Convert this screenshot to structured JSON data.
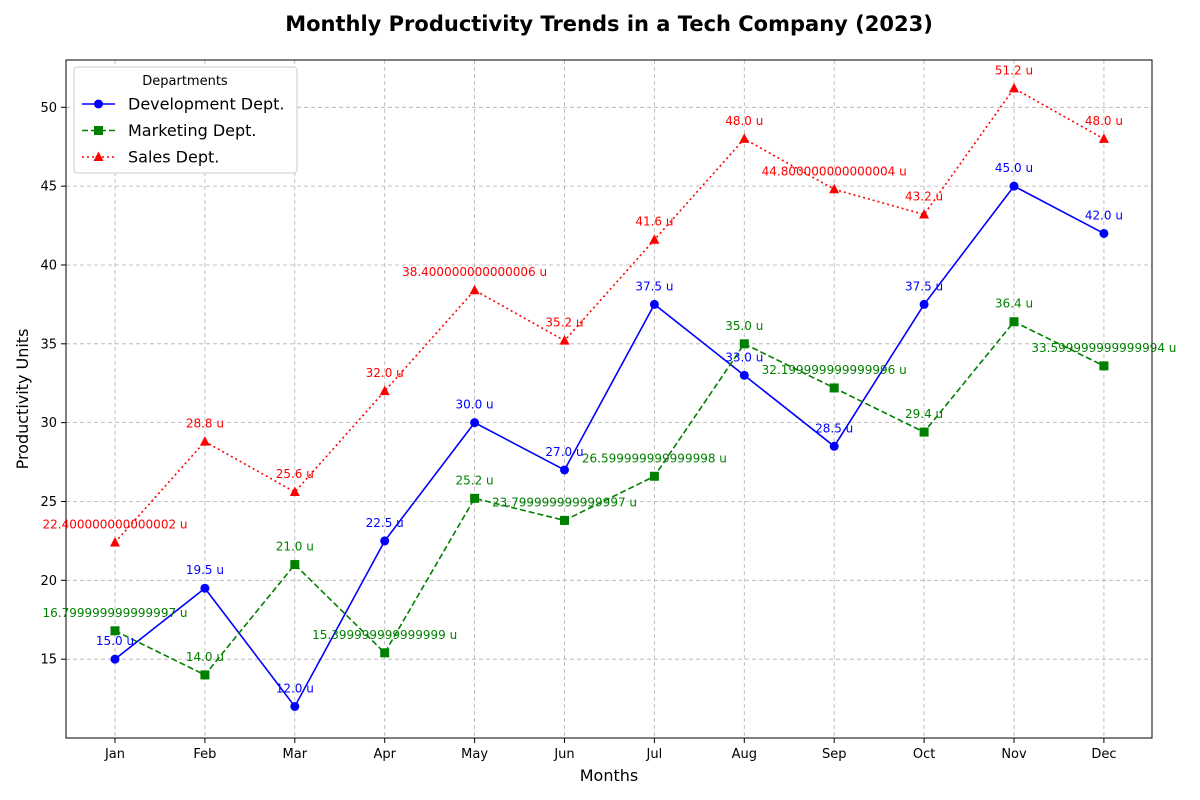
{
  "chart_data": {
    "type": "line",
    "title": "Monthly Productivity Trends in a Tech Company (2023)",
    "xlabel": "Months",
    "ylabel": "Productivity Units",
    "categories": [
      "Jan",
      "Feb",
      "Mar",
      "Apr",
      "May",
      "Jun",
      "Jul",
      "Aug",
      "Sep",
      "Oct",
      "Nov",
      "Dec"
    ],
    "ylim": [
      10,
      53
    ],
    "yticks": [
      15,
      20,
      25,
      30,
      35,
      40,
      45,
      50
    ],
    "grid": true,
    "legend": {
      "title": "Departments",
      "position": "top-left"
    },
    "series": [
      {
        "name": "Development Dept.",
        "color": "#0000ff",
        "line_style": "solid",
        "marker": "circle",
        "values": [
          15.0,
          19.5,
          12.0,
          22.5,
          30.0,
          27.0,
          37.5,
          33.0,
          28.5,
          37.5,
          45.0,
          42.0
        ],
        "labels": [
          "15.0 u",
          "19.5 u",
          "12.0 u",
          "22.5 u",
          "30.0 u",
          "27.0 u",
          "37.5 u",
          "33.0 u",
          "28.5 u",
          "37.5 u",
          "45.0 u",
          "42.0 u"
        ]
      },
      {
        "name": "Marketing Dept.",
        "color": "#008000",
        "line_style": "dashed",
        "marker": "square",
        "values": [
          16.8,
          14.0,
          21.0,
          15.4,
          25.2,
          23.8,
          26.6,
          35.0,
          32.2,
          29.4,
          36.4,
          33.6
        ],
        "labels": [
          "16.799999999999997 u",
          "14.0 u",
          "21.0 u",
          "15.399999999999999 u",
          "25.2 u",
          "23.799999999999997 u",
          "26.599999999999998 u",
          "35.0 u",
          "32.199999999999996 u",
          "29.4 u",
          "36.4 u",
          "33.599999999999994 u"
        ]
      },
      {
        "name": "Sales Dept.",
        "color": "#ff0000",
        "line_style": "dotted",
        "marker": "triangle",
        "values": [
          22.4,
          28.8,
          25.6,
          32.0,
          38.4,
          35.2,
          41.6,
          48.0,
          44.8,
          43.2,
          51.2,
          48.0
        ],
        "labels": [
          "22.400000000000002 u",
          "28.8 u",
          "25.6 u",
          "32.0 u",
          "38.400000000000006 u",
          "35.2 u",
          "41.6 u",
          "48.0 u",
          "44.800000000000004 u",
          "43.2 u",
          "51.2 u",
          "48.0 u"
        ]
      }
    ]
  }
}
